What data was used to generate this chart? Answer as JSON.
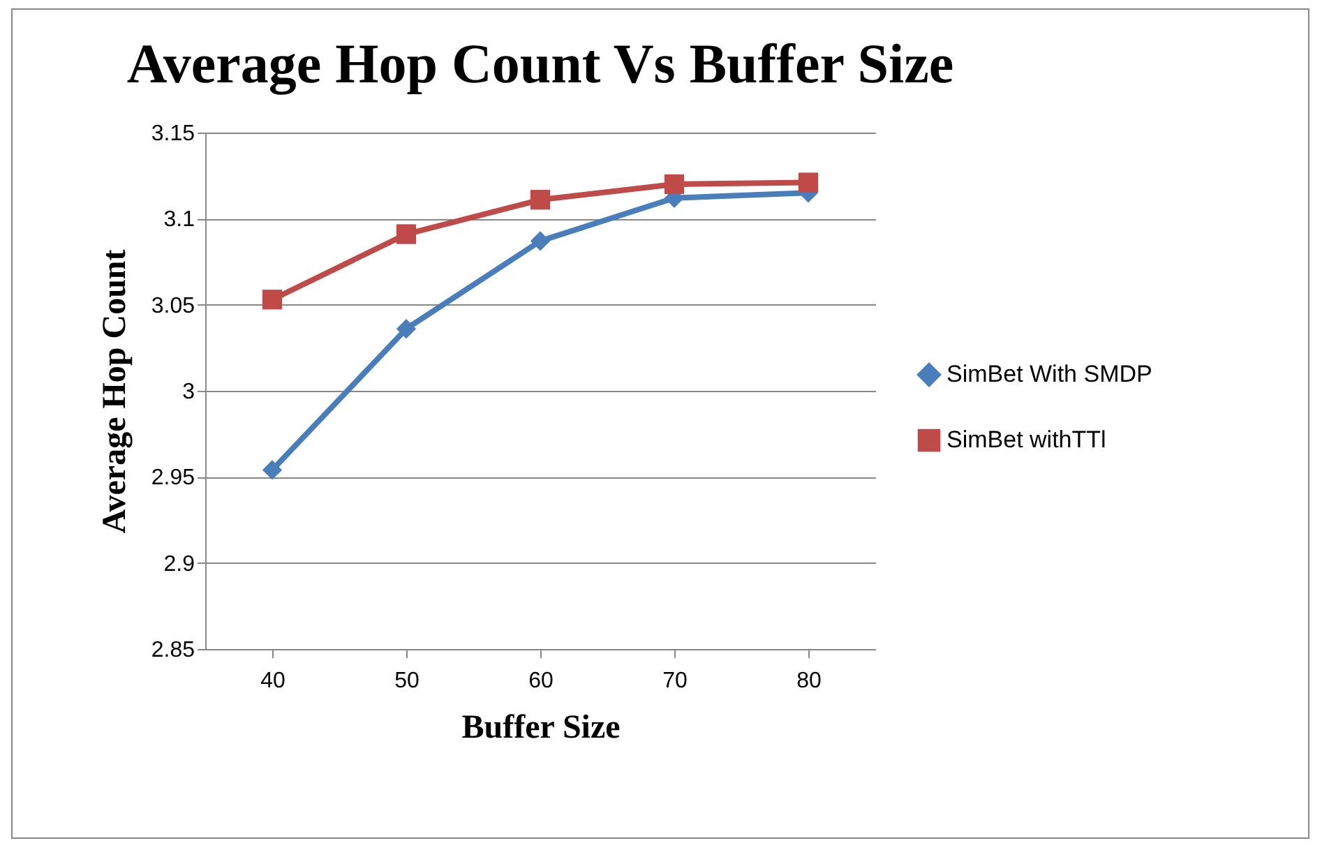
{
  "chart_data": {
    "type": "line",
    "title": "Average Hop Count Vs Buffer Size",
    "xlabel": "Buffer Size",
    "ylabel": "Average Hop Count",
    "categories": [
      "40",
      "50",
      "60",
      "70",
      "80"
    ],
    "series": [
      {
        "name": "SimBet With SMDP",
        "color": "#4a7ebb",
        "marker": "diamond",
        "values": [
          2.954,
          3.036,
          3.087,
          3.112,
          3.115
        ]
      },
      {
        "name": "SimBet withTTl",
        "color": "#be4b48",
        "marker": "square",
        "values": [
          3.053,
          3.091,
          3.111,
          3.12,
          3.121
        ]
      }
    ],
    "ylim": [
      2.85,
      3.15
    ],
    "yticks": [
      2.85,
      2.9,
      2.95,
      3,
      3.05,
      3.1,
      3.15
    ],
    "grid": "y",
    "legend": "right",
    "line_style": "solid"
  }
}
